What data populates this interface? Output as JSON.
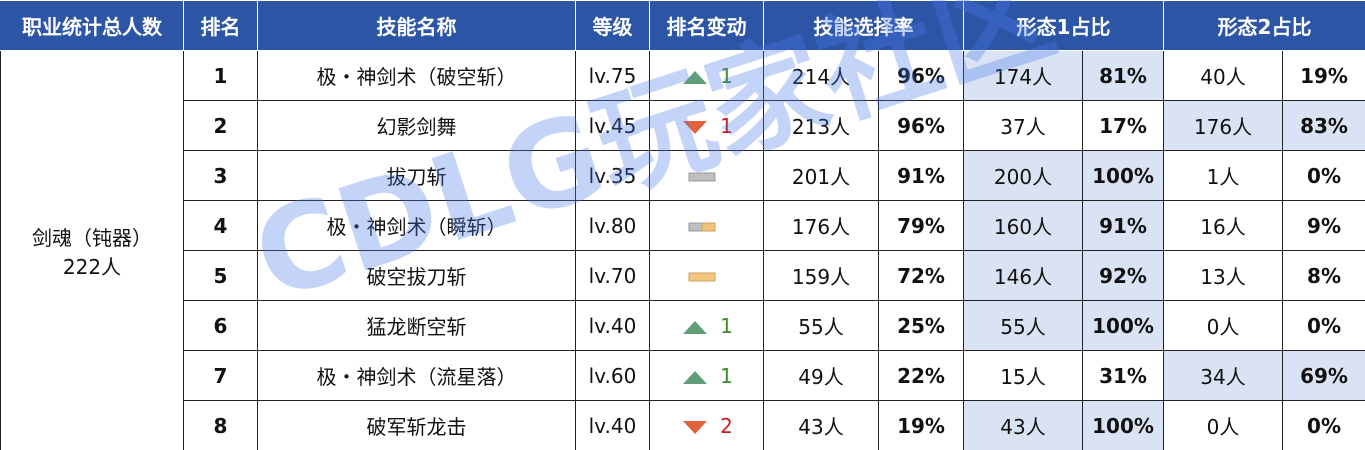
{
  "header": [
    "职业统计总人数",
    "排名",
    "技能名称",
    "等级",
    "排名变动",
    "技能选择率",
    "形态1占比",
    "形态2占比"
  ],
  "class_name": "剑魂（钝器）",
  "class_total": "222人",
  "rows": [
    {
      "rank": "1",
      "skill": "极・神剑术（破空斩）",
      "level": "lv.75",
      "change": "1",
      "sel_n": "214人",
      "sel_p": "96%",
      "f1_n": "174人",
      "f1_p": "81%",
      "f2_n": "40人",
      "f2_p": "19%"
    },
    {
      "rank": "2",
      "skill": "幻影剑舞",
      "level": "lv.45",
      "change": "1",
      "sel_n": "213人",
      "sel_p": "96%",
      "f1_n": "37人",
      "f1_p": "17%",
      "f2_n": "176人",
      "f2_p": "83%"
    },
    {
      "rank": "3",
      "skill": "拔刀斩",
      "level": "lv.35",
      "sel_n": "201人",
      "sel_p": "91%",
      "f1_n": "200人",
      "f1_p": "100%",
      "f2_n": "1人",
      "f2_p": "0%"
    },
    {
      "rank": "4",
      "skill": "极・神剑术（瞬斩）",
      "level": "lv.80",
      "sel_n": "176人",
      "sel_p": "79%",
      "f1_n": "160人",
      "f1_p": "91%",
      "f2_n": "16人",
      "f2_p": "9%"
    },
    {
      "rank": "5",
      "skill": "破空拔刀斩",
      "level": "lv.70",
      "sel_n": "159人",
      "sel_p": "72%",
      "f1_n": "146人",
      "f1_p": "92%",
      "f2_n": "13人",
      "f2_p": "8%"
    },
    {
      "rank": "6",
      "skill": "猛龙断空斩",
      "level": "lv.40",
      "change": "1",
      "sel_n": "55人",
      "sel_p": "25%",
      "f1_n": "55人",
      "f1_p": "100%",
      "f2_n": "0人",
      "f2_p": "0%"
    },
    {
      "rank": "7",
      "skill": "极・神剑术（流星落）",
      "level": "lv.60",
      "change": "1",
      "sel_n": "49人",
      "sel_p": "22%",
      "f1_n": "15人",
      "f1_p": "31%",
      "f2_n": "34人",
      "f2_p": "69%"
    },
    {
      "rank": "8",
      "skill": "破军斩龙击",
      "level": "lv.40",
      "change": "2",
      "sel_n": "43人",
      "sel_p": "19%",
      "f1_n": "43人",
      "f1_p": "100%",
      "f2_n": "0人",
      "f2_p": "0%"
    }
  ],
  "watermark": "CDLG玩家社区"
}
